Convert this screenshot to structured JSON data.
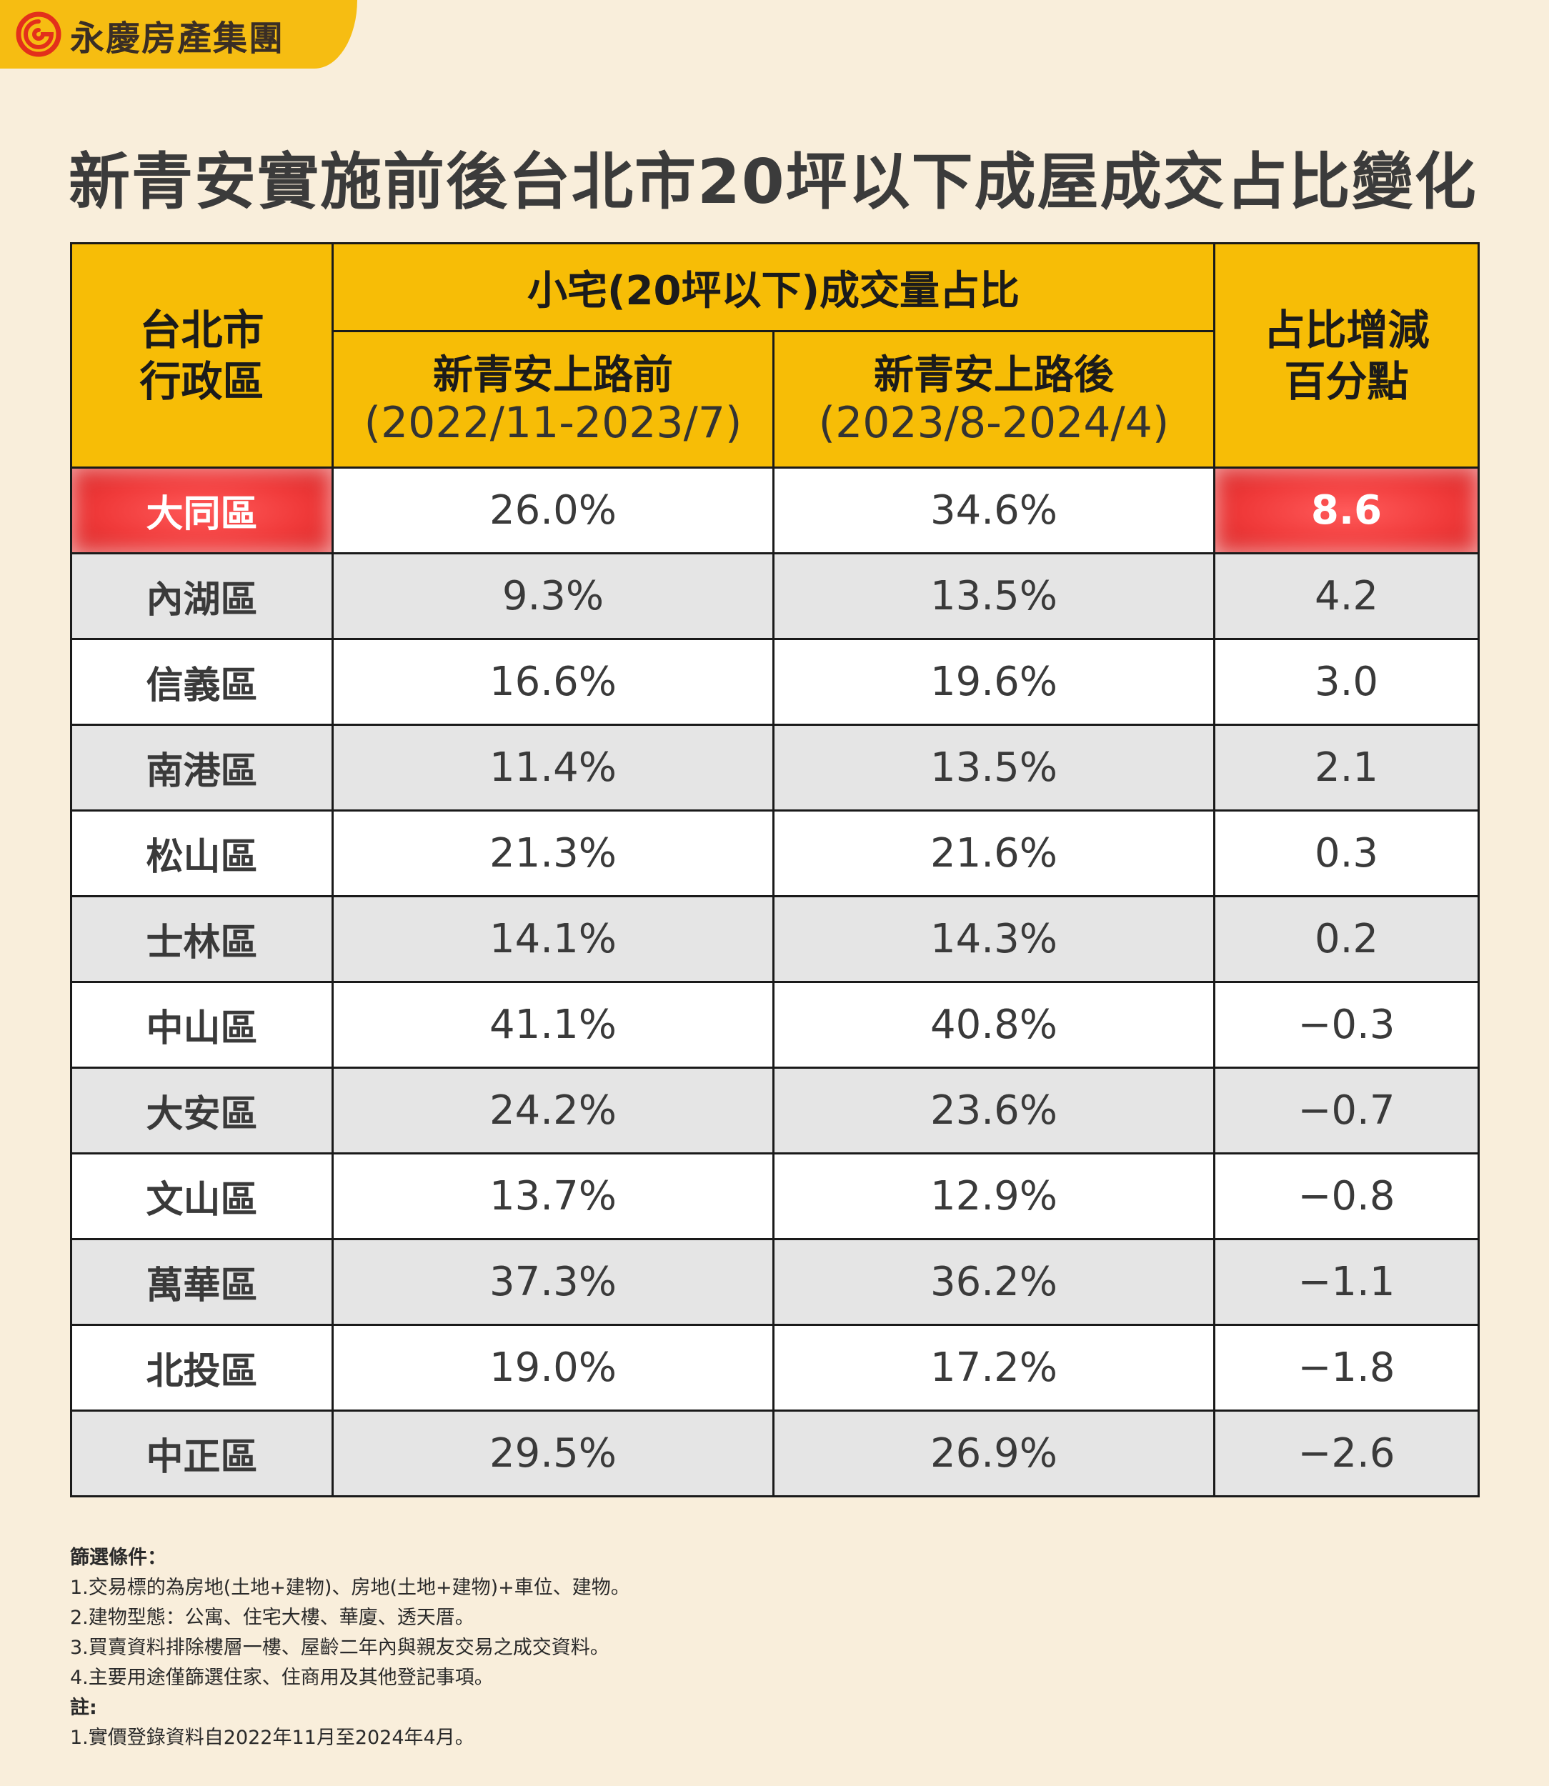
{
  "brand": {
    "name": "永慶房產集團",
    "logo_icon": "spiral-logo-icon",
    "tab_color": "#f6bd12"
  },
  "title": "新青安實施前後台北市20坪以下成屋成交占比變化",
  "table": {
    "header_color": "#f7bd06",
    "highlight_color": "#f03a3a",
    "col_district": [
      "台北市",
      "行政區"
    ],
    "col_group": "小宅(20坪以下)成交量占比",
    "col_before": {
      "label": "新青安上路前",
      "period": "(2022/11-2023/7)"
    },
    "col_after": {
      "label": "新青安上路後",
      "period": "(2023/8-2024/4)"
    },
    "col_change": [
      "占比增減",
      "百分點"
    ]
  },
  "chart_data": {
    "type": "table",
    "title": "新青安實施前後台北市20坪以下成屋成交占比變化",
    "columns": [
      "台北市行政區",
      "新青安上路前(2022/11-2023/7)",
      "新青安上路後(2023/8-2024/4)",
      "占比增減百分點"
    ],
    "rows": [
      {
        "district": "大同區",
        "before": "26.0%",
        "after": "34.6%",
        "change": "8.6",
        "highlight": true
      },
      {
        "district": "內湖區",
        "before": "9.3%",
        "after": "13.5%",
        "change": "4.2"
      },
      {
        "district": "信義區",
        "before": "16.6%",
        "after": "19.6%",
        "change": "3.0"
      },
      {
        "district": "南港區",
        "before": "11.4%",
        "after": "13.5%",
        "change": "2.1"
      },
      {
        "district": "松山區",
        "before": "21.3%",
        "after": "21.6%",
        "change": "0.3"
      },
      {
        "district": "士林區",
        "before": "14.1%",
        "after": "14.3%",
        "change": "0.2"
      },
      {
        "district": "中山區",
        "before": "41.1%",
        "after": "40.8%",
        "change": "−0.3"
      },
      {
        "district": "大安區",
        "before": "24.2%",
        "after": "23.6%",
        "change": "−0.7"
      },
      {
        "district": "文山區",
        "before": "13.7%",
        "after": "12.9%",
        "change": "−0.8"
      },
      {
        "district": "萬華區",
        "before": "37.3%",
        "after": "36.2%",
        "change": "−1.1"
      },
      {
        "district": "北投區",
        "before": "19.0%",
        "after": "17.2%",
        "change": "−1.8"
      },
      {
        "district": "中正區",
        "before": "29.5%",
        "after": "26.9%",
        "change": "−2.6"
      }
    ]
  },
  "notes": {
    "filter_heading": "篩選條件：",
    "filter_lines": [
      "1.交易標的為房地(土地+建物)、房地(土地+建物)+車位、建物。",
      "2.建物型態：公寓、住宅大樓、華廈、透天厝。",
      "3.買賣資料排除樓層一樓、屋齡二年內與親友交易之成交資料。",
      "4.主要用途僅篩選住家、住商用及其他登記事項。"
    ],
    "note_heading": "註:",
    "note_lines": [
      "1.實價登錄資料自2022年11月至2024年4月。"
    ]
  }
}
